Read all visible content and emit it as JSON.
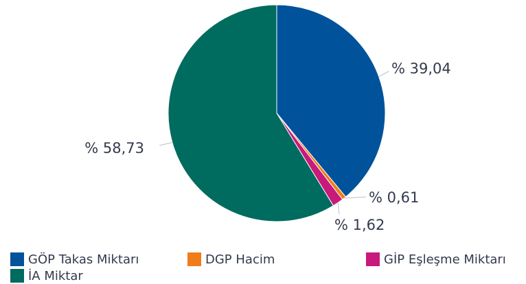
{
  "chart_data": {
    "type": "pie",
    "categories": [
      "GÖP Takas Miktarı",
      "DGP Hacim",
      "GİP Eşleşme Miktarı",
      "İA Miktar"
    ],
    "values": [
      39.04,
      0.61,
      1.62,
      58.73
    ],
    "value_labels": [
      "% 39,04",
      "% 0,61",
      "% 1,62",
      "% 58,73"
    ],
    "colors": [
      "#00529b",
      "#f07d1a",
      "#c8197c",
      "#006b5f"
    ],
    "legend": "bottom"
  }
}
